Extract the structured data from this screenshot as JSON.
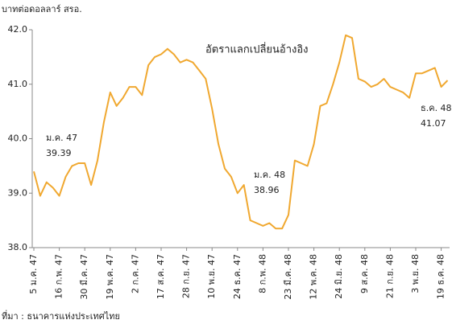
{
  "chart_data": {
    "type": "line",
    "title": "อัตราแลกเปลี่ยนอ้างอิง",
    "y_axis_label": "บาทต่อดอลลาร์ สรอ.",
    "source": "ที่มา : ธนาคารแห่งประเทศไทย",
    "annotations": [
      {
        "label": "ม.ค. 47",
        "value": "39.39"
      },
      {
        "label": "ม.ค. 48",
        "value": "38.96"
      },
      {
        "label": "ธ.ค. 48",
        "value": "41.07"
      }
    ],
    "categories": [
      "5 ม.ค. 47",
      null,
      null,
      null,
      "16 ก.พ. 47",
      null,
      null,
      null,
      "30 มี.ค. 47",
      null,
      null,
      null,
      "19 พ.ค. 47",
      null,
      null,
      null,
      "2 ก.ค. 47",
      null,
      null,
      null,
      "17 ส.ค. 47",
      null,
      null,
      null,
      "28 ก.ย. 47",
      null,
      null,
      null,
      "10 พ.ย. 47",
      null,
      null,
      null,
      "24 ธ.ค. 47",
      null,
      null,
      null,
      "8 ก.พ. 48",
      null,
      null,
      null,
      "23 มี.ค. 48",
      null,
      null,
      null,
      "12 พ.ค. 48",
      null,
      null,
      null,
      "24 มิ.ย. 48",
      null,
      null,
      null,
      "9 ส.ค. 48",
      null,
      null,
      null,
      "21 ก.ย. 48",
      null,
      null,
      null,
      "3 พ.ย. 48",
      null,
      null,
      null,
      "19 ธ.ค. 48",
      null
    ],
    "values": [
      39.4,
      38.95,
      39.2,
      39.1,
      38.95,
      39.3,
      39.5,
      39.55,
      39.55,
      39.15,
      39.6,
      40.3,
      40.85,
      40.6,
      40.75,
      40.95,
      40.95,
      40.8,
      41.35,
      41.5,
      41.55,
      41.65,
      41.55,
      41.4,
      41.45,
      41.4,
      41.25,
      41.1,
      40.55,
      39.9,
      39.45,
      39.3,
      39.0,
      39.15,
      38.5,
      38.45,
      38.4,
      38.45,
      38.35,
      38.35,
      38.6,
      39.6,
      39.55,
      39.5,
      39.9,
      40.6,
      40.65,
      41.0,
      41.4,
      41.9,
      41.85,
      41.1,
      41.05,
      40.95,
      41.0,
      41.1,
      40.95,
      40.9,
      40.85,
      40.75,
      41.2,
      41.2,
      41.25,
      41.3,
      40.95,
      41.07
    ],
    "color": "#f0a830",
    "ylim": [
      38.0,
      42.0
    ],
    "yticks": [
      {
        "value": 38,
        "label": "38.0"
      },
      {
        "value": 39,
        "label": "39.0"
      },
      {
        "value": 40,
        "label": "40.0"
      },
      {
        "value": 41,
        "label": "41.0"
      },
      {
        "value": 42,
        "label": "42.0"
      }
    ],
    "grid": false
  }
}
